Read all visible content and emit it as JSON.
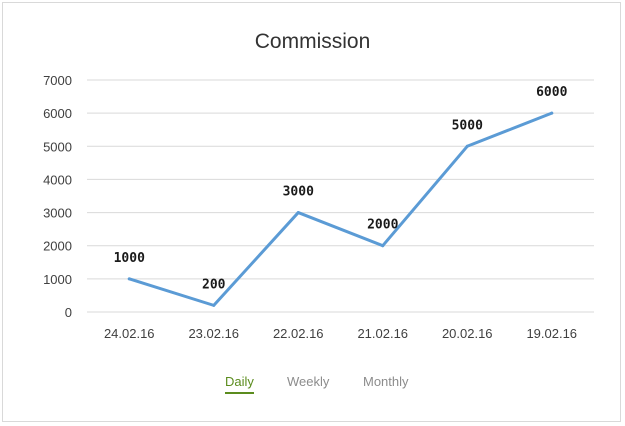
{
  "chart_data": {
    "type": "line",
    "title": "Commission",
    "categories": [
      "24.02.16",
      "23.02.16",
      "22.02.16",
      "21.02.16",
      "20.02.16",
      "19.02.16"
    ],
    "values": [
      1000,
      200,
      3000,
      2000,
      5000,
      6000
    ],
    "data_labels": [
      "1000",
      "200",
      "3000",
      "2000",
      "5000",
      "6000"
    ],
    "xlabel": "",
    "ylabel": "",
    "ylim": [
      0,
      7000
    ],
    "yticks": [
      "0",
      "1000",
      "2000",
      "3000",
      "4000",
      "5000",
      "6000",
      "7000"
    ],
    "grid": true,
    "legend": "none",
    "line_color": "#5b9bd5"
  },
  "tabs": [
    {
      "label": "Daily",
      "active": true
    },
    {
      "label": "Weekly",
      "active": false
    },
    {
      "label": "Monthly",
      "active": false
    }
  ],
  "colors": {
    "active_tab": "#5b8c1e",
    "inactive_tab": "#8c8c8c",
    "grid": "#d9d9d9"
  }
}
